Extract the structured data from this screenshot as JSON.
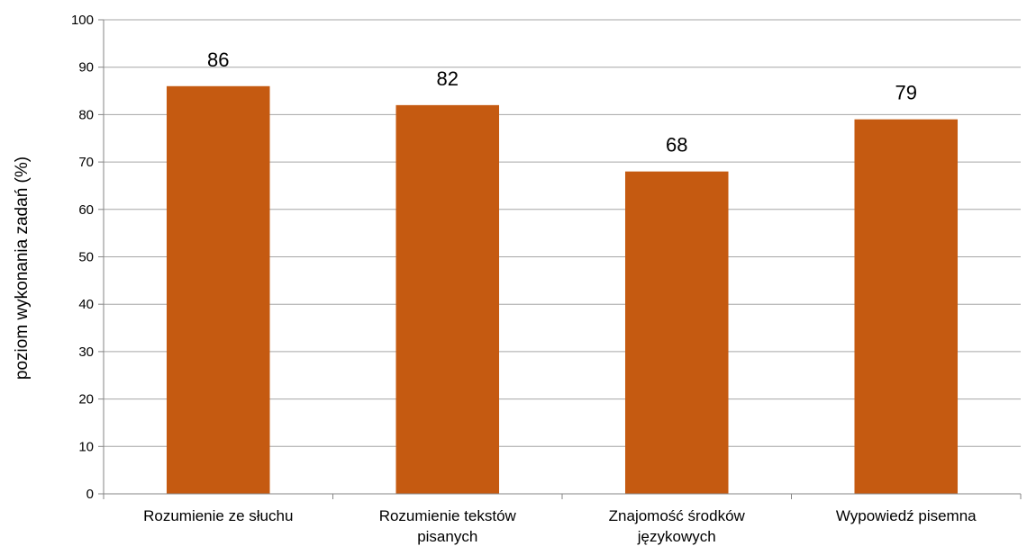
{
  "chart_data": {
    "type": "bar",
    "title": "",
    "xlabel": "",
    "ylabel": "poziom wykonania zadań (%)",
    "categories": [
      [
        "Rozumienie ze słuchu"
      ],
      [
        "Rozumienie tekstów",
        "pisanych"
      ],
      [
        "Znajomość środków",
        "językowych"
      ],
      [
        "Wypowiedź pisemna"
      ]
    ],
    "values": [
      86,
      82,
      68,
      79
    ],
    "ylim": [
      0,
      100
    ],
    "yticks": [
      0,
      10,
      20,
      30,
      40,
      50,
      60,
      70,
      80,
      90,
      100
    ],
    "grid": true,
    "legend": "none",
    "bar_color": "#C55A11",
    "grid_color": "#A6A6A6",
    "axis_color": "#868686"
  }
}
